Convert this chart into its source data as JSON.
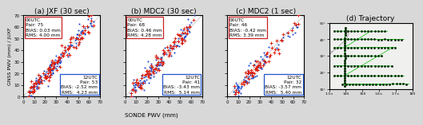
{
  "panels": [
    {
      "title": "(a) JXF (30 sec)",
      "stats_00": {
        "label": "00UTC",
        "pair": 75,
        "bias": "0.03",
        "rms": "4.00"
      },
      "stats_12": {
        "label": "12UTC",
        "pair": 53,
        "bias": "-2.52",
        "rms": "4.23"
      },
      "n00": 75,
      "n12": 53,
      "b00": 0.03,
      "b12": -2.52,
      "seed": 10
    },
    {
      "title": "(b) MDC2 (30 sec)",
      "stats_00": {
        "label": "00UTC",
        "pair": 68,
        "bias": "0.46",
        "rms": "4.28"
      },
      "stats_12": {
        "label": "12UTC",
        "pair": 41,
        "bias": "-3.43",
        "rms": "5.14"
      },
      "n00": 68,
      "n12": 41,
      "b00": 0.46,
      "b12": -3.43,
      "seed": 20
    },
    {
      "title": "(c) MDC2 (1 sec)",
      "stats_00": {
        "label": "00UTC",
        "pair": 46,
        "bias": "-0.42",
        "rms": "3.39"
      },
      "stats_12": {
        "label": "12UTC",
        "pair": 32,
        "bias": "-3.57",
        "rms": "5.40"
      },
      "n00": 46,
      "n12": 32,
      "b00": -0.42,
      "b12": -3.57,
      "seed": 30
    }
  ],
  "map_title": "(d) Trajectory",
  "xlabel": "SONDE PWV (mm)",
  "ylabel": "GNSS PWV (mm) / JUXF",
  "xlim": [
    0,
    70
  ],
  "ylim": [
    0,
    70
  ],
  "xticks": [
    0,
    10,
    20,
    30,
    40,
    50,
    60,
    70
  ],
  "yticks": [
    0,
    10,
    20,
    30,
    40,
    50,
    60,
    70
  ],
  "red_color": "#dd2211",
  "blue_color": "#1144cc",
  "box_00_color": "#cc2222",
  "box_12_color": "#2255cc",
  "fig_bg": "#d8d8d8",
  "plot_bg": "#ffffff",
  "text_fontsize": 4.2,
  "title_fontsize": 6.5,
  "tick_fontsize": 4.0,
  "map_xlim": [
    130,
    180
  ],
  "map_ylim": [
    10,
    50
  ],
  "green_traj": "#00bb00",
  "dark_dot": "#002200",
  "coast_color": "#999999"
}
